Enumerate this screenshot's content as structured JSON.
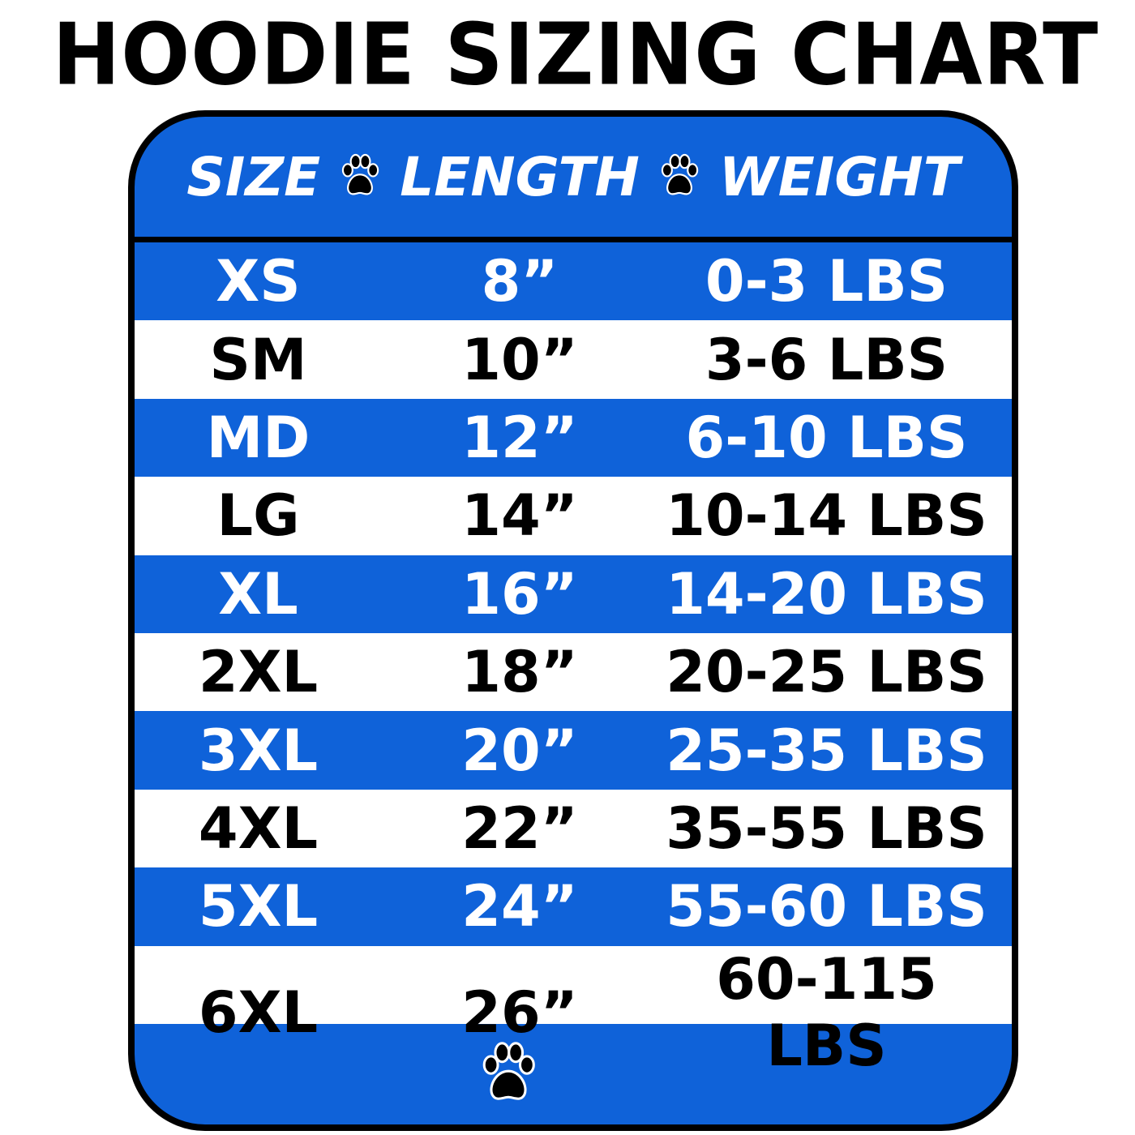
{
  "title": "HOODIE SIZING CHART",
  "colors": {
    "accent": "#0f62d9",
    "border": "#000000"
  },
  "header": {
    "columns": [
      "SIZE",
      "LENGTH",
      "WEIGHT"
    ],
    "separator_icon": "paw-print-icon"
  },
  "rows": [
    {
      "size": "XS",
      "length": "8”",
      "weight": "0-3 LBS"
    },
    {
      "size": "SM",
      "length": "10”",
      "weight": "3-6 LBS"
    },
    {
      "size": "MD",
      "length": "12”",
      "weight": "6-10 LBS"
    },
    {
      "size": "LG",
      "length": "14”",
      "weight": "10-14 LBS"
    },
    {
      "size": "XL",
      "length": "16”",
      "weight": "14-20 LBS"
    },
    {
      "size": "2XL",
      "length": "18”",
      "weight": "20-25 LBS"
    },
    {
      "size": "3XL",
      "length": "20”",
      "weight": "25-35 LBS"
    },
    {
      "size": "4XL",
      "length": "22”",
      "weight": "35-55 LBS"
    },
    {
      "size": "5XL",
      "length": "24”",
      "weight": "55-60 LBS"
    },
    {
      "size": "6XL",
      "length": "26”",
      "weight": "60-115 LBS"
    }
  ],
  "footer": {
    "icon": "paw-print-icon"
  }
}
